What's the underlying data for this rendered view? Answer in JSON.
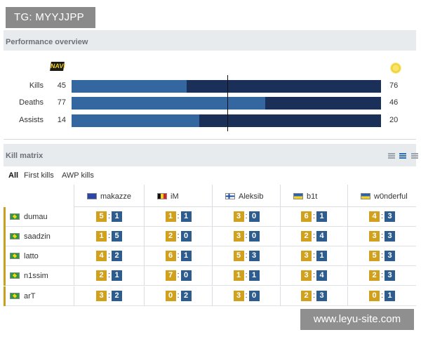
{
  "watermark_top": "TG: MYYJJPP",
  "watermark_bottom": "www.leyu-site.com",
  "performance": {
    "title": "Performance overview",
    "left_team_logo": "NAVI",
    "rows": [
      {
        "label": "Kills",
        "left": "45",
        "right": "76",
        "left_share": 0.372
      },
      {
        "label": "Deaths",
        "left": "77",
        "right": "46",
        "left_share": 0.626
      },
      {
        "label": "Assists",
        "left": "14",
        "right": "20",
        "left_share": 0.412
      }
    ]
  },
  "kill_matrix": {
    "title": "Kill matrix",
    "tabs": [
      "All",
      "First kills",
      "AWP kills"
    ],
    "active_tab": "All",
    "columns": [
      {
        "name": "makazze",
        "flag": "eu"
      },
      {
        "name": "iM",
        "flag": "be"
      },
      {
        "name": "Aleksib",
        "flag": "fi"
      },
      {
        "name": "b1t",
        "flag": "ua"
      },
      {
        "name": "w0nderful",
        "flag": "ua"
      }
    ],
    "rows": [
      {
        "player": "dumau",
        "flag": "br",
        "cells": [
          [
            "5",
            "1"
          ],
          [
            "1",
            "1"
          ],
          [
            "3",
            "0"
          ],
          [
            "6",
            "1"
          ],
          [
            "4",
            "3"
          ]
        ]
      },
      {
        "player": "saadzin",
        "flag": "br",
        "cells": [
          [
            "1",
            "5"
          ],
          [
            "2",
            "0"
          ],
          [
            "3",
            "0"
          ],
          [
            "2",
            "4"
          ],
          [
            "3",
            "3"
          ]
        ]
      },
      {
        "player": "latto",
        "flag": "br",
        "cells": [
          [
            "4",
            "2"
          ],
          [
            "6",
            "1"
          ],
          [
            "5",
            "3"
          ],
          [
            "3",
            "1"
          ],
          [
            "5",
            "3"
          ]
        ]
      },
      {
        "player": "n1ssim",
        "flag": "br",
        "cells": [
          [
            "2",
            "1"
          ],
          [
            "7",
            "0"
          ],
          [
            "1",
            "1"
          ],
          [
            "3",
            "4"
          ],
          [
            "2",
            "3"
          ]
        ]
      },
      {
        "player": "arT",
        "flag": "br",
        "cells": [
          [
            "3",
            "2"
          ],
          [
            "0",
            "2"
          ],
          [
            "3",
            "0"
          ],
          [
            "2",
            "3"
          ],
          [
            "0",
            "1"
          ]
        ]
      }
    ]
  },
  "colors": {
    "kill_badge": "#d1a11d",
    "death_badge": "#2d5c8e",
    "bar_left": "#3467a0",
    "bar_right": "#1a3058"
  }
}
